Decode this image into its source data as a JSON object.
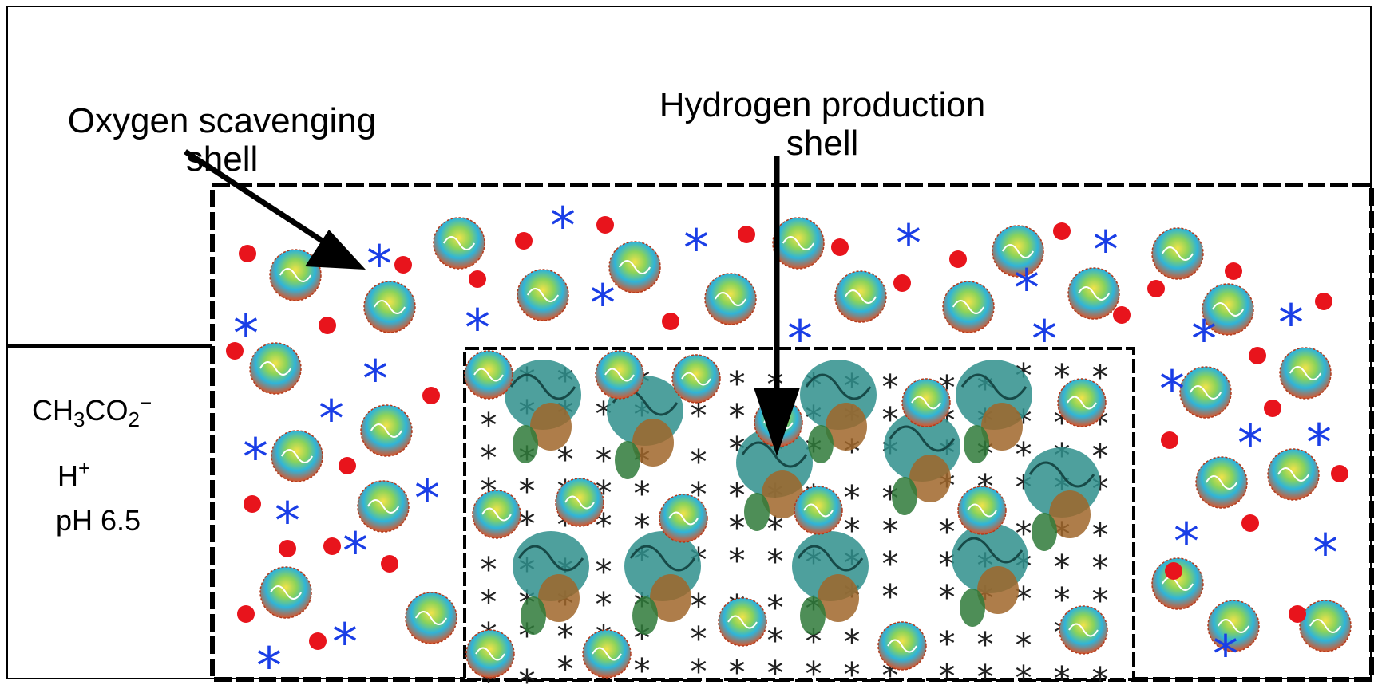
{
  "labels": {
    "oxygen_shell": "Oxygen scavenging\nshell",
    "hydrogen_shell": "Hydrogen production\nshell"
  },
  "medium": {
    "acetate_main": "CH",
    "acetate_sub1": "3",
    "acetate_mid": "CO",
    "acetate_sub2": "2",
    "acetate_charge": "−",
    "proton": "H",
    "proton_charge": "+",
    "ph": "pH 6.5"
  },
  "colors": {
    "oxygen_dot": "#e8141c",
    "scavenger_star": "#1a3ee6",
    "hydrogen_star": "#222222",
    "hydrogenase": "#2f8f8c",
    "border": "#000000"
  }
}
